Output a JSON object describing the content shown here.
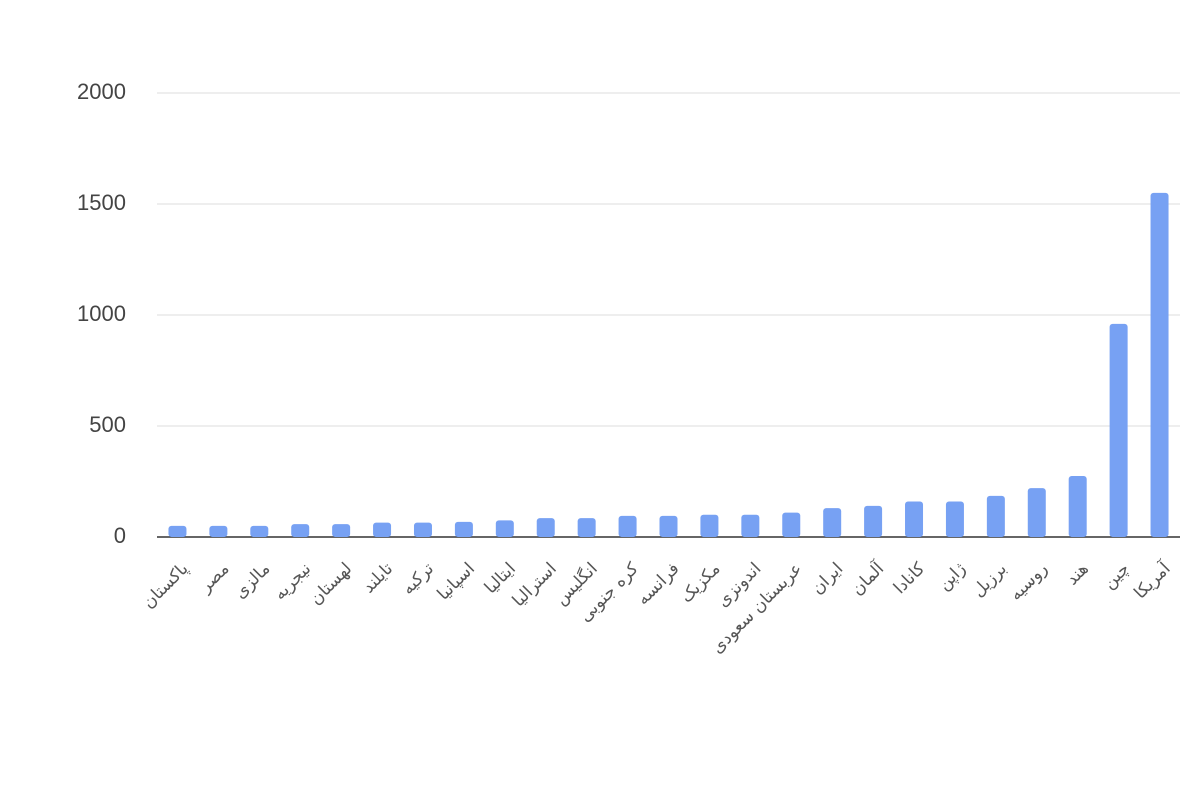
{
  "chart_data": {
    "type": "bar",
    "categories": [
      "پاکستان",
      "مصر",
      "مالزی",
      "نیجریه",
      "لهستان",
      "تایلند",
      "ترکیه",
      "اسپانیا",
      "ایتالیا",
      "استرالیا",
      "انگلیس",
      "کره جنوبی",
      "فرانسه",
      "مکزیک",
      "اندونزی",
      "عربستان سعودی",
      "ایران",
      "آلمان",
      "کانادا",
      "ژاپن",
      "برزیل",
      "روسیه",
      "هند",
      "چین",
      "آمریکا"
    ],
    "values": [
      50,
      50,
      50,
      58,
      58,
      65,
      65,
      68,
      75,
      85,
      85,
      95,
      95,
      100,
      100,
      110,
      130,
      140,
      160,
      160,
      185,
      220,
      275,
      960,
      1550
    ],
    "color": "#77a1f3",
    "ylim": [
      0,
      2000
    ],
    "yticks": [
      0,
      500,
      1000,
      1500,
      2000
    ],
    "grid": true
  }
}
